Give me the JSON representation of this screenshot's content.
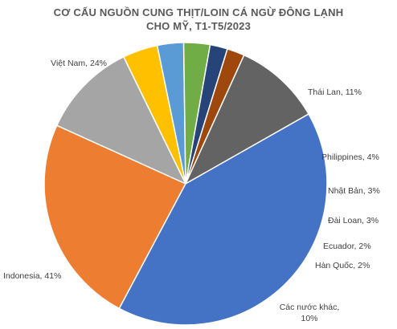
{
  "chart_data": {
    "type": "pie",
    "title_lines": [
      "CƠ CẤU NGUỒN CUNG THỊT/LOIN CÁ NGỪ ĐÔNG LẠNH",
      "CHO MỸ, T1-T5/2023"
    ],
    "start_angle_deg": 152,
    "slices": [
      {
        "label": "Việt Nam",
        "value": 24,
        "label_text": "Việt Nam, 24%",
        "color": "#ED7D31"
      },
      {
        "label": "Thái Lan",
        "value": 11,
        "label_text": "Thái Lan, 11%",
        "color": "#A5A5A5"
      },
      {
        "label": "Philippines",
        "value": 4,
        "label_text": "Philippines, 4%",
        "color": "#FFC000"
      },
      {
        "label": "Nhật Bản",
        "value": 3,
        "label_text": "Nhật Bản, 3%",
        "color": "#5B9BD5"
      },
      {
        "label": "Đài Loan",
        "value": 3,
        "label_text": "Đài Loan, 3%",
        "color": "#70AD47"
      },
      {
        "label": "Ecuador",
        "value": 2,
        "label_text": "Ecuador, 2%",
        "color": "#264478"
      },
      {
        "label": "Hàn Quốc",
        "value": 2,
        "label_text": "Hàn Quốc, 2%",
        "color": "#9E480E"
      },
      {
        "label": "Các nước khác",
        "value": 10,
        "label_text_lines": [
          "Các nước khác,",
          "10%"
        ],
        "color": "#636363"
      },
      {
        "label": "Indonesia",
        "value": 41,
        "label_text": "Indonesia, 41%",
        "color": "#4472C4"
      }
    ]
  }
}
